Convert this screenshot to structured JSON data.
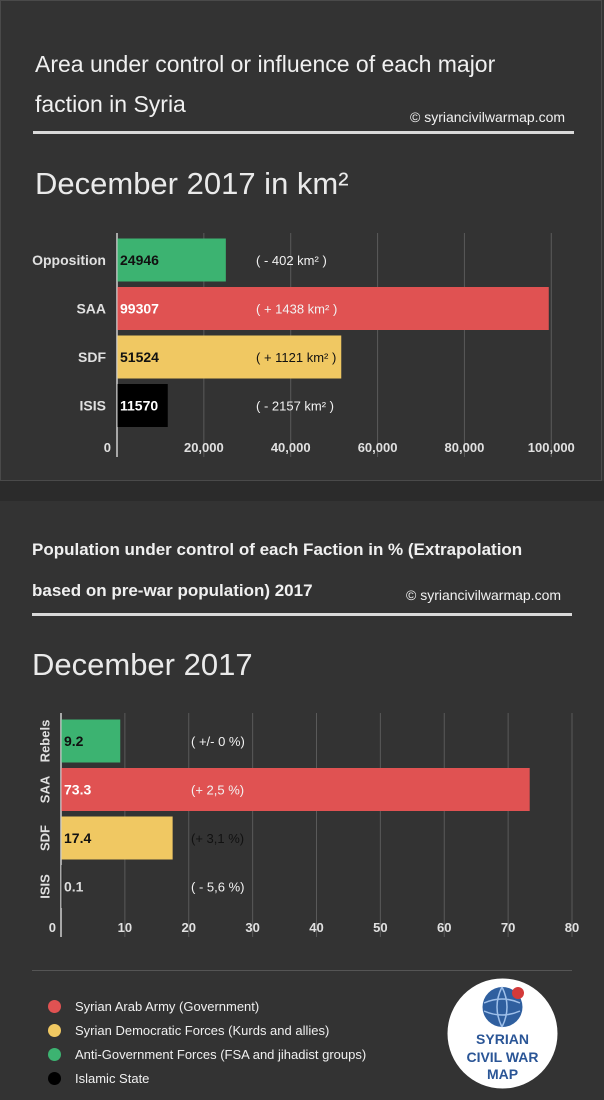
{
  "area_panel": {
    "title": "Area under control or influence of each major faction in Syria",
    "copyright": "© syriancivilwarmap.com",
    "subtitle": "December 2017 in km²"
  },
  "population_panel": {
    "title": "Population under control of each Faction in % (Extrapolation based on pre-war population) 2017",
    "copyright": "© syriancivilwarmap.com",
    "subtitle": "December 2017"
  },
  "colors": {
    "opposition": "#3cb371",
    "saa": "#e05252",
    "sdf": "#f0c862",
    "isis": "#000000",
    "grid": "#5a5a5a"
  },
  "chart_data": [
    {
      "type": "bar",
      "orientation": "horizontal",
      "title": "December 2017 in km²",
      "categories": [
        "Opposition",
        "SAA",
        "SDF",
        "ISIS"
      ],
      "values": [
        24946,
        99307,
        51524,
        11570
      ],
      "value_labels": [
        "24946",
        "99307",
        "51524",
        "11570"
      ],
      "annotations": [
        "( - 402 km²    )",
        "( + 1438 km² )",
        "( + 1121 km² )",
        "( - 2157 km² )"
      ],
      "bar_colors": [
        "#3cb371",
        "#e05252",
        "#f0c862",
        "#000000"
      ],
      "value_label_colors": [
        "#111111",
        "#ffffff",
        "#111111",
        "#ffffff"
      ],
      "xlim": [
        0,
        105000
      ],
      "xticks": [
        0,
        20000,
        40000,
        60000,
        80000,
        100000
      ],
      "xtick_labels": [
        "0",
        "20,000",
        "40,000",
        "60,000",
        "80,000",
        "100,000"
      ]
    },
    {
      "type": "bar",
      "orientation": "horizontal",
      "title": "December 2017",
      "categories": [
        "Rebels",
        "SAA",
        "SDF",
        "ISIS"
      ],
      "values": [
        9.2,
        73.3,
        17.4,
        0.1
      ],
      "value_labels": [
        "9.2",
        "73.3",
        "17.4",
        "0.1"
      ],
      "annotations": [
        "( +/- 0 %)",
        "(+ 2,5 %)",
        "(+ 3,1 %)",
        "( - 5,6 %)"
      ],
      "bar_colors": [
        "#3cb371",
        "#e05252",
        "#f0c862",
        "#000000"
      ],
      "value_label_colors": [
        "#111111",
        "#ffffff",
        "#111111",
        "#dddddd"
      ],
      "xlim": [
        0,
        80
      ],
      "xticks": [
        0,
        10,
        20,
        30,
        40,
        50,
        60,
        70,
        80
      ],
      "xtick_labels": [
        "0",
        "10",
        "20",
        "30",
        "40",
        "50",
        "60",
        "70",
        "80"
      ]
    }
  ],
  "legend": [
    {
      "label": "Syrian Arab Army (Government)",
      "color": "#e05252"
    },
    {
      "label": "Syrian Democratic Forces (Kurds and allies)",
      "color": "#f0c862"
    },
    {
      "label": "Anti-Government Forces (FSA and jihadist groups)",
      "color": "#3cb371"
    },
    {
      "label": "Islamic State",
      "color": "#000000"
    }
  ],
  "logo": {
    "line1": "SYRIAN",
    "line2": "CIVIL WAR",
    "line3": "MAP"
  }
}
